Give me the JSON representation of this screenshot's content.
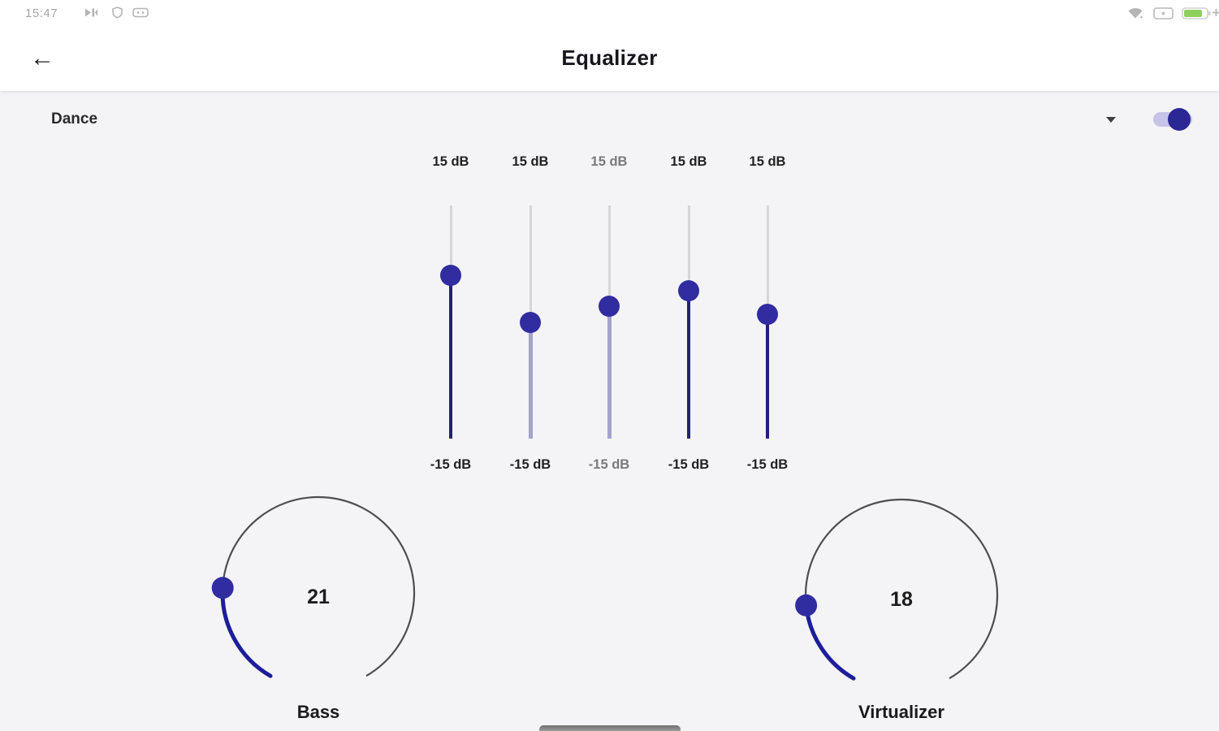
{
  "status_bar": {
    "time": "15:47",
    "left_icons": [
      "skip-next-icon",
      "shield-icon",
      "dotted-rect-icon"
    ],
    "right_icons": [
      "wifi-icon",
      "sim-card-icon",
      "battery-icon",
      "plus-icon"
    ]
  },
  "header": {
    "title": "Equalizer",
    "back_glyph": "←"
  },
  "preset_row": {
    "selected_preset": "Dance",
    "dropdown_icon": "chevron-down-icon",
    "equalizer_enabled": true
  },
  "equalizer": {
    "bands": [
      {
        "top_label": "15 dB",
        "bottom_label": "-15 dB",
        "value_db": 6,
        "range_min_db": -15,
        "range_max_db": 15,
        "fill": "dark",
        "dimmed": false
      },
      {
        "top_label": "15 dB",
        "bottom_label": "-15 dB",
        "value_db": 0,
        "range_min_db": -15,
        "range_max_db": 15,
        "fill": "light",
        "dimmed": false
      },
      {
        "top_label": "15 dB",
        "bottom_label": "-15 dB",
        "value_db": 2,
        "range_min_db": -15,
        "range_max_db": 15,
        "fill": "light",
        "dimmed": true
      },
      {
        "top_label": "15 dB",
        "bottom_label": "-15 dB",
        "value_db": 4,
        "range_min_db": -15,
        "range_max_db": 15,
        "fill": "dark",
        "dimmed": false
      },
      {
        "top_label": "15 dB",
        "bottom_label": "-15 dB",
        "value_db": 1,
        "range_min_db": -15,
        "range_max_db": 15,
        "fill": "dark",
        "dimmed": false
      }
    ]
  },
  "knobs": [
    {
      "label": "Bass",
      "value": 21,
      "min": 0,
      "max": 100
    },
    {
      "label": "Virtualizer",
      "value": 18,
      "min": 0,
      "max": 100
    }
  ],
  "colors": {
    "accent_indigo": "#302da0",
    "fill_dark": "#23217f",
    "fill_light": "#a5a2cd",
    "track_gray": "#d6d6d6",
    "toggle_track": "#c6c3e8",
    "toggle_thumb": "#2b2794",
    "knob_arc_gray": "#4e4e4e",
    "knob_arc_active": "#1d1e9b",
    "battery_green": "#8ed05e",
    "statusbar_gray": "#b5b5b5",
    "background": "#f4f3f5",
    "header_bg": "#ffffff"
  }
}
